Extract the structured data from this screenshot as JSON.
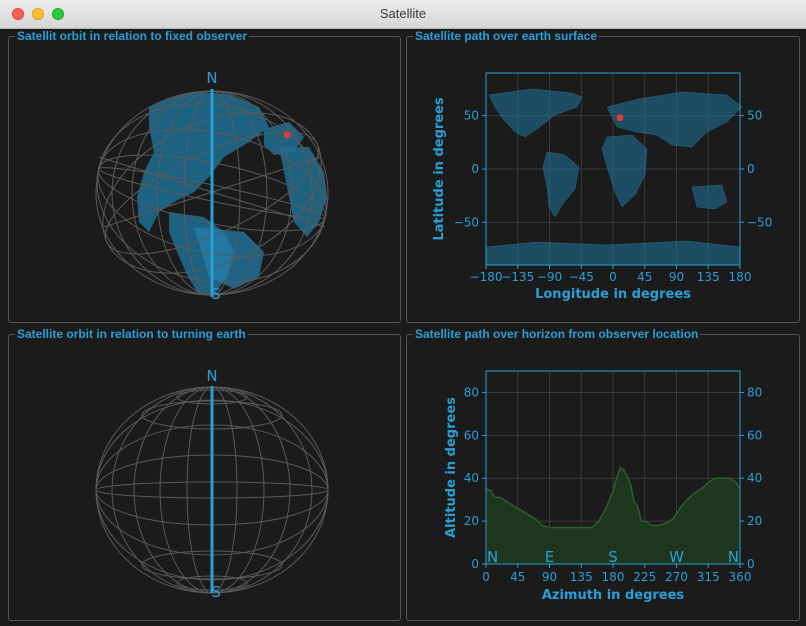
{
  "window": {
    "title": "Satellite"
  },
  "panels": {
    "fixed_observer": {
      "title": "Satellit orbit in relation to fixed observer",
      "north": "N",
      "south": "S"
    },
    "ground_track": {
      "title": "Satellite path over earth surface"
    },
    "turning_earth": {
      "title": "Satellite orbit in relation to turning earth",
      "north": "N",
      "south": "S"
    },
    "horizon": {
      "title": "Satellite path over horizon from observer location"
    }
  },
  "colors": {
    "accent": "#2a9fd6",
    "marker": "#e03c3c",
    "land": "#1f6e94",
    "grid": "#5a5a5a",
    "fill": "#1f3a1f",
    "line": "#2c5f2c"
  },
  "chart_data": [
    {
      "type": "scatter",
      "xlabel": "Longitude in degrees",
      "ylabel": "Latitude in degrees",
      "xlim": [
        -180,
        180
      ],
      "ylim": [
        -90,
        90
      ],
      "xticks": [
        -180,
        -135,
        -90,
        -45,
        0,
        45,
        90,
        135,
        180
      ],
      "yticks": [
        -50,
        0,
        50
      ],
      "xtick_labels": [
        "−180",
        "−135",
        "−90",
        "−45",
        "0",
        "45",
        "90",
        "135",
        "180"
      ],
      "ytick_labels": [
        "−50",
        "0",
        "50"
      ],
      "grid": true,
      "points": [
        {
          "x": 10,
          "y": 48
        }
      ]
    },
    {
      "type": "area",
      "xlabel": "Azimuth in degrees",
      "ylabel": "Altitude in degrees",
      "xlim": [
        0,
        360
      ],
      "ylim": [
        0,
        90
      ],
      "xticks": [
        0,
        45,
        90,
        135,
        180,
        225,
        270,
        315,
        360
      ],
      "yticks": [
        0,
        20,
        40,
        60,
        80
      ],
      "compass": [
        {
          "label": "N",
          "x": 0
        },
        {
          "label": "E",
          "x": 90
        },
        {
          "label": "S",
          "x": 180
        },
        {
          "label": "W",
          "x": 270
        },
        {
          "label": "N",
          "x": 360
        }
      ],
      "grid": true,
      "x": [
        0,
        8,
        12,
        20,
        30,
        40,
        50,
        60,
        70,
        80,
        90,
        100,
        110,
        120,
        130,
        140,
        150,
        160,
        170,
        180,
        185,
        190,
        195,
        200,
        205,
        210,
        215,
        220,
        225,
        235,
        245,
        255,
        265,
        275,
        285,
        295,
        305,
        315,
        325,
        335,
        345,
        355,
        360
      ],
      "y": [
        35,
        34,
        31,
        31,
        29,
        27,
        25,
        23,
        21,
        18,
        17,
        17,
        17,
        17,
        17,
        17,
        17,
        20,
        26,
        34,
        40,
        45,
        44,
        41,
        37,
        29,
        27,
        20,
        20,
        18,
        18,
        19,
        21,
        26,
        30,
        33,
        35,
        38,
        40,
        40,
        40,
        38,
        35
      ]
    }
  ]
}
